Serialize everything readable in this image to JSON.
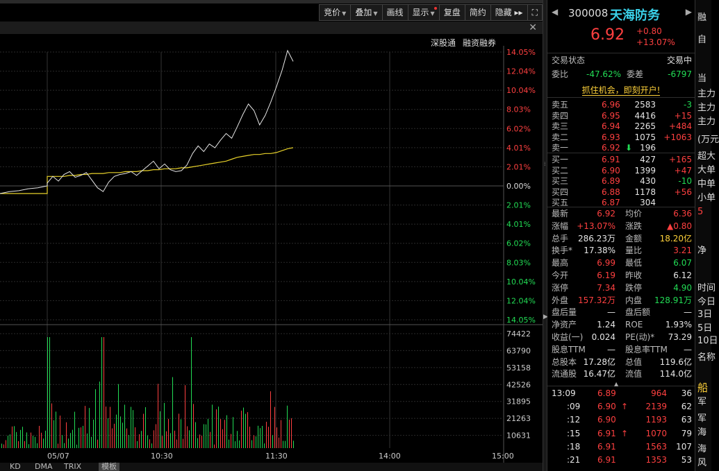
{
  "toolbar": {
    "buttons": [
      {
        "label": "竞价",
        "dropdown": true
      },
      {
        "label": "叠加",
        "dropdown": true
      },
      {
        "label": "画线",
        "dropdown": false
      },
      {
        "label": "显示",
        "dropdown": true,
        "dot": true
      },
      {
        "label": "复盘",
        "dropdown": false
      },
      {
        "label": "简约",
        "dropdown": false
      },
      {
        "label": "隐藏 ▸▸",
        "dropdown": false
      }
    ],
    "fullscreen_icon": "expand-icon"
  },
  "links": [
    "深股通",
    "融资融券"
  ],
  "chart_data": {
    "type": "line",
    "title": "",
    "y_axis_right_labels": [
      "14.05%",
      "12.04%",
      "10.04%",
      "8.03%",
      "6.02%",
      "4.01%",
      "2.01%",
      "0.00%",
      "2.01%",
      "4.01%",
      "6.02%",
      "8.03%",
      "10.04%",
      "12.04%",
      "14.05%"
    ],
    "y_axis_range_pct": [
      -14.05,
      14.05
    ],
    "x_axis_labels": [
      "05/07",
      "10:30",
      "11:30",
      "14:00",
      "15:00"
    ],
    "volume_axis_labels": [
      "74422",
      "63790",
      "53158",
      "42526",
      "31895",
      "21263",
      "10631"
    ],
    "price_series_pct": [
      -0.8,
      -0.6,
      -0.5,
      -0.3,
      -0.2,
      0.0,
      0.3,
      1.0,
      0.5,
      1.2,
      1.5,
      0.9,
      1.1,
      1.4,
      0.6,
      -0.2,
      -0.6,
      0.4,
      1.0,
      1.2,
      1.3,
      1.5,
      1.1,
      1.6,
      2.1,
      2.6,
      1.8,
      2.3,
      1.7,
      1.5,
      1.6,
      2.2,
      3.4,
      4.2,
      3.6,
      4.4,
      4.0,
      4.8,
      5.5,
      5.0,
      6.2,
      7.5,
      8.6,
      7.9,
      6.4,
      7.4,
      8.8,
      10.4,
      12.1,
      14.2,
      13.07
    ],
    "avg_series_pct": [
      -0.8,
      -0.8,
      -0.8,
      -0.8,
      -0.8,
      -0.8,
      1.0,
      1.0,
      1.0,
      1.0,
      1.1,
      1.1,
      1.2,
      1.2,
      1.3,
      1.3,
      1.3,
      1.4,
      1.4,
      1.4,
      1.5,
      1.5,
      1.5,
      1.6,
      1.6,
      1.7,
      1.7,
      1.8,
      1.8,
      1.8,
      1.9,
      1.9,
      2.0,
      2.1,
      2.2,
      2.3,
      2.4,
      2.5,
      2.6,
      2.8,
      3.0,
      3.1,
      3.2,
      3.3,
      3.3,
      3.4,
      3.4,
      3.5,
      3.7,
      3.9,
      4.01
    ]
  },
  "quote": {
    "code": "300008",
    "name": "天海防务",
    "price": "6.92",
    "change": "+0.80",
    "change_pct": "+13.07%",
    "status_label": "交易状态",
    "status_value": "交易中",
    "weibi_label": "委比",
    "weibi_value": "-47.62%",
    "weicha_label": "委差",
    "weicha_value": "-6797",
    "ad_text": "抓住机会，即刻开户!",
    "sell": [
      {
        "label": "卖五",
        "price": "6.96",
        "vol": "2583",
        "chg": "-3"
      },
      {
        "label": "卖四",
        "price": "6.95",
        "vol": "4416",
        "chg": "+15"
      },
      {
        "label": "卖三",
        "price": "6.94",
        "vol": "2265",
        "chg": "+484"
      },
      {
        "label": "卖二",
        "price": "6.93",
        "vol": "1075",
        "chg": "+1063"
      },
      {
        "label": "卖一",
        "price": "6.92",
        "vol": "196",
        "chg": ""
      }
    ],
    "buy": [
      {
        "label": "买一",
        "price": "6.91",
        "vol": "427",
        "chg": "+165"
      },
      {
        "label": "买二",
        "price": "6.90",
        "vol": "1399",
        "chg": "+47"
      },
      {
        "label": "买三",
        "price": "6.89",
        "vol": "430",
        "chg": "-10"
      },
      {
        "label": "买四",
        "price": "6.88",
        "vol": "1178",
        "chg": "+56"
      },
      {
        "label": "买五",
        "price": "6.87",
        "vol": "304",
        "chg": ""
      }
    ],
    "stats": [
      {
        "l1": "最新",
        "v1": "6.92",
        "c1": "rd",
        "l2": "均价",
        "v2": "6.36",
        "c2": "rd"
      },
      {
        "l1": "涨幅",
        "v1": "+13.07%",
        "c1": "rd",
        "l2": "涨跌",
        "v2": "▲0.80",
        "c2": "rd"
      },
      {
        "l1": "总手",
        "v1": "286.23万",
        "c1": "w",
        "l2": "金额",
        "v2": "18.20亿",
        "c2": "y"
      },
      {
        "l1": "换手*",
        "v1": "17.38%",
        "c1": "w",
        "l2": "量比",
        "v2": "3.21",
        "c2": "rd"
      },
      {
        "l1": "最高",
        "v1": "6.99",
        "c1": "rd",
        "l2": "最低",
        "v2": "6.07",
        "c2": "g"
      },
      {
        "l1": "今开",
        "v1": "6.19",
        "c1": "rd",
        "l2": "昨收",
        "v2": "6.12",
        "c2": "w"
      },
      {
        "l1": "涨停",
        "v1": "7.34",
        "c1": "rd",
        "l2": "跌停",
        "v2": "4.90",
        "c2": "g"
      },
      {
        "l1": "外盘",
        "v1": "157.32万",
        "c1": "rd",
        "l2": "内盘",
        "v2": "128.91万",
        "c2": "g"
      },
      {
        "l1": "盘后量",
        "v1": "—",
        "c1": "w",
        "l2": "盘后额",
        "v2": "—",
        "c2": "w"
      },
      {
        "l1": "净资产",
        "v1": "1.24",
        "c1": "w",
        "l2": "ROE",
        "v2": "1.93%",
        "c2": "w"
      },
      {
        "l1": "收益(一)",
        "v1": "0.024",
        "c1": "w",
        "l2": "PE(动)*",
        "v2": "73.29",
        "c2": "w"
      },
      {
        "l1": "股息TTM",
        "v1": "—",
        "c1": "w",
        "l2": "股息率TTM",
        "v2": "—",
        "c2": "w"
      },
      {
        "l1": "总股本",
        "v1": "17.28亿",
        "c1": "w",
        "l2": "总值",
        "v2": "119.6亿",
        "c2": "w"
      },
      {
        "l1": "流通股",
        "v1": "16.47亿",
        "c1": "w",
        "l2": "流值",
        "v2": "114.0亿",
        "c2": "w"
      }
    ],
    "ticks": [
      {
        "time": "13:09",
        "price": "6.89",
        "arrow": "",
        "vol": "964",
        "n": "36"
      },
      {
        "time": ":09",
        "price": "6.90",
        "arrow": "↑",
        "vol": "2139",
        "n": "62"
      },
      {
        "time": ":12",
        "price": "6.90",
        "arrow": "",
        "vol": "1193",
        "n": "63"
      },
      {
        "time": ":15",
        "price": "6.91",
        "arrow": "↑",
        "vol": "1070",
        "n": "79"
      },
      {
        "time": ":18",
        "price": "6.91",
        "arrow": "",
        "vol": "1563",
        "n": "107"
      },
      {
        "time": ":21",
        "price": "6.91",
        "arrow": "",
        "vol": "1353",
        "n": "53"
      }
    ]
  },
  "bottom_tabs": [
    "KD",
    "DMA",
    "TRIX",
    "模板"
  ],
  "far_right": [
    "融",
    "自",
    "当",
    "主力",
    "主力",
    "主力",
    "(万元",
    "超大",
    "大单",
    "中单",
    "小单",
    "5",
    "净",
    "时间",
    "今日",
    "3日",
    "5日",
    "10日",
    "名称",
    "船",
    "军",
    "军",
    "海",
    "海",
    "风"
  ],
  "colors": {
    "up": "#ff4040",
    "down": "#22dd55",
    "price_line": "#e6e6e6",
    "avg_line": "#e8d22a",
    "name": "#3ad0e8"
  }
}
